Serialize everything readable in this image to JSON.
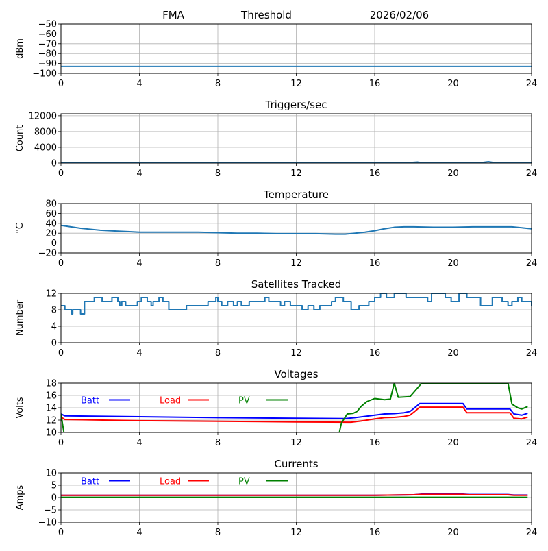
{
  "header": {
    "station": "FMA",
    "label": "Threshold",
    "date": "2026/02/06"
  },
  "chart_data": [
    {
      "type": "line",
      "title": "",
      "xlabel": "",
      "ylabel": "dBm",
      "xlim": [
        0,
        24
      ],
      "ylim": [
        -100,
        -50
      ],
      "xticks": [
        0,
        4,
        8,
        12,
        16,
        20,
        24
      ],
      "yticks": [
        -100,
        -90,
        -80,
        -70,
        -60,
        -50
      ],
      "ytick_labels": [
        "−100",
        "−90",
        "−80",
        "−70",
        "−60",
        "−50"
      ],
      "grid": true,
      "series": [
        {
          "name": "threshold",
          "color": "#1f77b4",
          "x": [
            0,
            24
          ],
          "y": [
            -93,
            -93
          ]
        }
      ]
    },
    {
      "type": "line",
      "title": "Triggers/sec",
      "xlabel": "",
      "ylabel": "Count",
      "xlim": [
        0,
        24
      ],
      "ylim": [
        0,
        12500
      ],
      "xticks": [
        0,
        4,
        8,
        12,
        16,
        20,
        24
      ],
      "yticks": [
        0,
        4000,
        8000,
        12000
      ],
      "ytick_labels": [
        "0",
        "4000",
        "8000",
        "12000"
      ],
      "grid": true,
      "series": [
        {
          "name": "triggers",
          "color": "#1f77b4",
          "x": [
            0,
            1.8,
            2.7,
            6,
            10,
            13,
            15.3,
            17.8,
            18.2,
            18.4,
            19.3,
            21.5,
            21.8,
            22.1,
            24
          ],
          "y": [
            60,
            100,
            80,
            60,
            60,
            70,
            80,
            120,
            250,
            100,
            120,
            150,
            350,
            120,
            60
          ]
        }
      ]
    },
    {
      "type": "line",
      "title": "Temperature",
      "xlabel": "",
      "ylabel": "°C",
      "xlim": [
        0,
        24
      ],
      "ylim": [
        -20,
        80
      ],
      "xticks": [
        0,
        4,
        8,
        12,
        16,
        20,
        24
      ],
      "yticks": [
        -20,
        0,
        20,
        40,
        60,
        80
      ],
      "ytick_labels": [
        "−20",
        "0",
        "20",
        "40",
        "60",
        "80"
      ],
      "grid": true,
      "series": [
        {
          "name": "temperature",
          "color": "#1f77b4",
          "x": [
            0,
            0.5,
            1,
            1.5,
            2,
            2.5,
            3,
            3.5,
            4,
            5,
            6,
            7,
            8,
            9,
            10,
            11,
            12,
            13,
            14,
            14.5,
            15,
            15.5,
            16,
            16.5,
            17,
            17.5,
            18,
            19,
            20,
            21,
            22,
            23,
            23.5,
            24
          ],
          "y": [
            36,
            33,
            30,
            28,
            26,
            25,
            24,
            23,
            22,
            22,
            22,
            22,
            21,
            20,
            20,
            19,
            19,
            19,
            18,
            18,
            20,
            22,
            25,
            29,
            32,
            33,
            33,
            32,
            32,
            33,
            33,
            33,
            31,
            29
          ]
        }
      ]
    },
    {
      "type": "line",
      "title": "Satellites Tracked",
      "xlabel": "",
      "ylabel": "Number",
      "xlim": [
        0,
        24
      ],
      "ylim": [
        0,
        12
      ],
      "xticks": [
        0,
        4,
        8,
        12,
        16,
        20,
        24
      ],
      "yticks": [
        0,
        4,
        8,
        12
      ],
      "ytick_labels": [
        "0",
        "4",
        "8",
        "12"
      ],
      "grid": true,
      "series": [
        {
          "name": "satellites",
          "color": "#1f77b4",
          "step": true,
          "x": [
            0,
            0.2,
            0.55,
            0.6,
            0.7,
            1.0,
            1.2,
            1.3,
            1.7,
            2.1,
            2.6,
            2.9,
            3.0,
            3.1,
            3.3,
            3.5,
            3.9,
            4.1,
            4.4,
            4.6,
            4.7,
            5.0,
            5.2,
            5.5,
            6.0,
            6.4,
            6.9,
            7.5,
            7.7,
            7.9,
            8.0,
            8.2,
            8.5,
            8.8,
            9.0,
            9.2,
            9.6,
            10.0,
            10.4,
            10.6,
            11.0,
            11.2,
            11.4,
            11.7,
            12.0,
            12.3,
            12.6,
            12.9,
            13.2,
            13.5,
            13.8,
            14.0,
            14.4,
            14.8,
            15.2,
            15.7,
            16.0,
            16.3,
            16.6,
            17.0,
            17.6,
            18.1,
            18.7,
            18.9,
            19.3,
            19.6,
            19.9,
            20.3,
            20.7,
            21.4,
            21.7,
            22.0,
            22.5,
            22.8,
            23.0,
            23.3,
            23.5,
            24
          ],
          "y": [
            9,
            8,
            7,
            8,
            8,
            7,
            10,
            10,
            11,
            10,
            11,
            10,
            9,
            10,
            9,
            9,
            10,
            11,
            10,
            9,
            10,
            11,
            10,
            8,
            8,
            9,
            9,
            10,
            10,
            11,
            10,
            9,
            10,
            9,
            10,
            9,
            10,
            10,
            11,
            10,
            10,
            9,
            10,
            9,
            9,
            8,
            9,
            8,
            9,
            9,
            10,
            11,
            10,
            8,
            9,
            10,
            11,
            12,
            11,
            12,
            11,
            11,
            10,
            12,
            12,
            11,
            10,
            12,
            11,
            9,
            9,
            11,
            10,
            9,
            10,
            11,
            10,
            9
          ]
        }
      ]
    },
    {
      "type": "line",
      "title": "Voltages",
      "xlabel": "",
      "ylabel": "Volts",
      "xlim": [
        0,
        24
      ],
      "ylim": [
        10,
        18
      ],
      "xticks": [
        0,
        4,
        8,
        12,
        16,
        20,
        24
      ],
      "yticks": [
        10,
        12,
        14,
        16,
        18
      ],
      "ytick_labels": [
        "10",
        "12",
        "14",
        "16",
        "18"
      ],
      "grid": true,
      "legend": {
        "placement": "top-left-inline",
        "entries": [
          {
            "label": "Batt",
            "color": "#0000ff"
          },
          {
            "label": "Load",
            "color": "#ff0000"
          },
          {
            "label": "PV",
            "color": "#008000"
          }
        ]
      },
      "series": [
        {
          "name": "Batt",
          "color": "#0000ff",
          "x": [
            0,
            0.2,
            4,
            8,
            12,
            14.5,
            15,
            16,
            16.5,
            17,
            17.5,
            17.8,
            18,
            18.3,
            20.5,
            20.7,
            22.9,
            23.1,
            23.5,
            23.8
          ],
          "y": [
            13,
            12.7,
            12.55,
            12.4,
            12.3,
            12.25,
            12.4,
            12.8,
            13,
            13.05,
            13.2,
            13.4,
            13.9,
            14.7,
            14.7,
            13.8,
            13.8,
            13.0,
            12.8,
            13.1
          ]
        },
        {
          "name": "Load",
          "color": "#ff0000",
          "x": [
            0,
            0.2,
            4,
            8,
            12,
            14.8,
            15.3,
            16,
            16.5,
            17,
            17.5,
            17.8,
            18,
            18.3,
            20.5,
            20.7,
            22.9,
            23.1,
            23.5,
            23.8
          ],
          "y": [
            12.5,
            12.1,
            11.9,
            11.8,
            11.7,
            11.65,
            11.85,
            12.2,
            12.4,
            12.45,
            12.6,
            12.8,
            13.3,
            14.1,
            14.1,
            13.2,
            13.2,
            12.3,
            12.2,
            12.5
          ]
        },
        {
          "name": "PV",
          "color": "#008000",
          "x": [
            0,
            0.15,
            14.2,
            14.3,
            14.6,
            14.9,
            15.1,
            15.3,
            15.6,
            16,
            16.5,
            16.8,
            17,
            17.2,
            17.8,
            18.4,
            22.8,
            23,
            23.3,
            23.5,
            23.8
          ],
          "y": [
            13,
            10,
            10,
            11.5,
            13,
            13.1,
            13.4,
            14.2,
            15.0,
            15.5,
            15.3,
            15.4,
            18,
            15.7,
            15.8,
            18,
            18,
            14.6,
            14.0,
            13.8,
            14.2
          ]
        }
      ]
    },
    {
      "type": "line",
      "title": "Currents",
      "xlabel": "",
      "ylabel": "Amps",
      "xlim": [
        0,
        24
      ],
      "ylim": [
        -10,
        10
      ],
      "xticks": [
        0,
        4,
        8,
        12,
        16,
        20,
        24
      ],
      "yticks": [
        -10,
        -5,
        0,
        5,
        10
      ],
      "ytick_labels": [
        "−10",
        "−5",
        "0",
        "5",
        "10"
      ],
      "grid": true,
      "legend": {
        "placement": "top-left-inline",
        "entries": [
          {
            "label": "Batt",
            "color": "#0000ff"
          },
          {
            "label": "Load",
            "color": "#ff0000"
          },
          {
            "label": "PV",
            "color": "#008000"
          }
        ]
      },
      "series": [
        {
          "name": "Batt",
          "color": "#0000ff",
          "x": [
            0,
            16,
            18,
            18.4,
            20.5,
            20.8,
            22.8,
            23.1,
            23.8
          ],
          "y": [
            0.9,
            0.9,
            1.1,
            1.4,
            1.4,
            1.2,
            1.2,
            1.0,
            1.0
          ]
        },
        {
          "name": "Load",
          "color": "#ff0000",
          "x": [
            0,
            16,
            18,
            18.4,
            20.5,
            20.8,
            22.8,
            23.1,
            23.8
          ],
          "y": [
            0.9,
            0.9,
            1.1,
            1.3,
            1.3,
            1.1,
            1.1,
            0.9,
            0.9
          ]
        },
        {
          "name": "PV",
          "color": "#008000",
          "x": [
            0,
            23.8
          ],
          "y": [
            0.1,
            0.1
          ]
        }
      ]
    }
  ]
}
